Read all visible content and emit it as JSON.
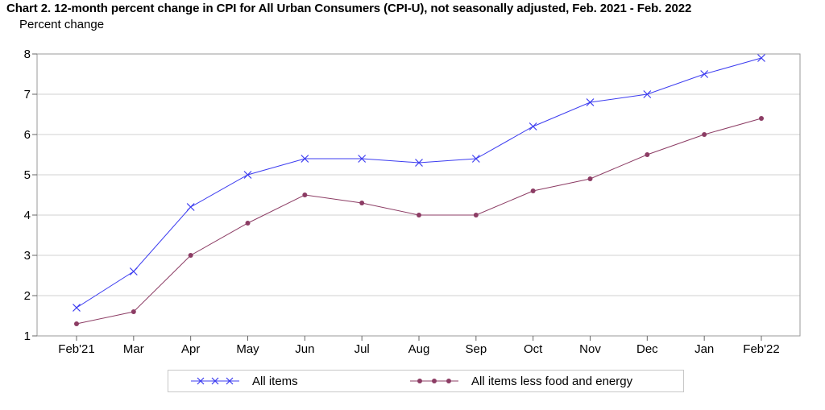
{
  "chart_data": {
    "type": "line",
    "title": "Chart 2. 12-month percent change in CPI for All Urban Consumers (CPI-U), not seasonally adjusted, Feb. 2021 - Feb. 2022",
    "ylabel": "Percent change",
    "xlabel": "",
    "categories": [
      "Feb'21",
      "Mar",
      "Apr",
      "May",
      "Jun",
      "Jul",
      "Aug",
      "Sep",
      "Oct",
      "Nov",
      "Dec",
      "Jan",
      "Feb'22"
    ],
    "ylim": [
      1,
      8
    ],
    "yticks": [
      1,
      2,
      3,
      4,
      5,
      6,
      7,
      8
    ],
    "grid": true,
    "legend_position": "bottom",
    "series": [
      {
        "name": "All items",
        "marker": "x",
        "color": "#3c3cf0",
        "values": [
          1.7,
          2.6,
          4.2,
          5.0,
          5.4,
          5.4,
          5.3,
          5.4,
          6.2,
          6.8,
          7.0,
          7.5,
          7.9
        ]
      },
      {
        "name": "All items less food and energy",
        "marker": "dot",
        "color": "#8c3c64",
        "values": [
          1.3,
          1.6,
          3.0,
          3.8,
          4.5,
          4.3,
          4.0,
          4.0,
          4.6,
          4.9,
          5.5,
          6.0,
          6.4
        ]
      }
    ]
  }
}
